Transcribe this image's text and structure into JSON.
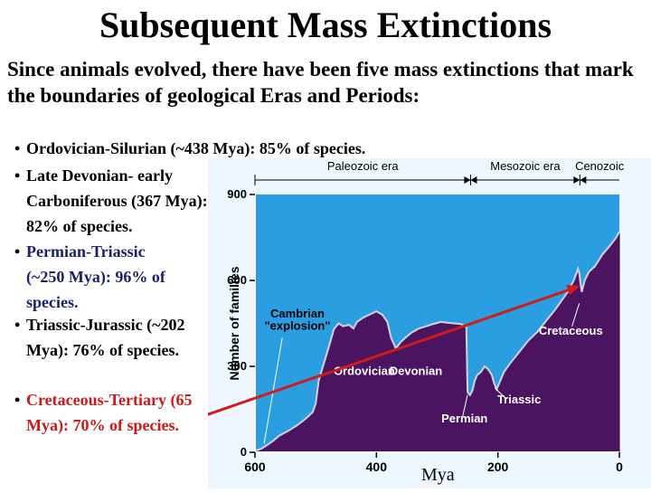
{
  "title": "Subsequent Mass Extinctions",
  "intro": "Since animals evolved, there have been five mass extinctions that mark the boundaries of geological Eras and Periods:",
  "bullets": [
    {
      "text": "Ordovician-Silurian (~438 Mya): 85% of species."
    },
    {
      "text": "Late Devonian- early Carboniferous (367 Mya): 82% of species."
    },
    {
      "text": "Permian-Triassic (~250 Mya): 96% of species."
    },
    {
      "text": "Triassic-Jurassic (~202 Mya): 76% of species."
    },
    {
      "text": "Cretaceous-Tertiary (65 Mya): 70% of species."
    }
  ],
  "x_caption": "Mya",
  "colors": {
    "area": "#4a1460",
    "plot_bg": "#2a9ee0",
    "axis": "#ffffff",
    "arrow": "#d11a1a",
    "blue_text": "#1a1f6e",
    "red_text": "#cc1a1a"
  },
  "chart_data": {
    "type": "area",
    "title": "",
    "xlabel": "Mya",
    "ylabel": "Number of families",
    "xlim": [
      600,
      0
    ],
    "ylim": [
      0,
      900
    ],
    "xticks": [
      600,
      400,
      200,
      0
    ],
    "yticks": [
      0,
      300,
      600,
      900
    ],
    "grid": false,
    "eras": [
      {
        "name": "Paleozoic era",
        "from": 600,
        "to": 245
      },
      {
        "name": "Mesozoic era",
        "from": 245,
        "to": 65
      },
      {
        "name": "Cenozoic",
        "from": 65,
        "to": 0
      }
    ],
    "series": [
      {
        "x": [
          600,
          590,
          580,
          570,
          560,
          545,
          530,
          515,
          505,
          500,
          495,
          488,
          478,
          470,
          462,
          455,
          445,
          438,
          432,
          422,
          412,
          400,
          390,
          382,
          376,
          368,
          360,
          352,
          342,
          330,
          318,
          306,
          294,
          282,
          272,
          262,
          252,
          250,
          246,
          242,
          238,
          234,
          228,
          222,
          216,
          210,
          206,
          202,
          198,
          190,
          180,
          165,
          150,
          135,
          120,
          105,
          95,
          85,
          75,
          68,
          66,
          64,
          62,
          57,
          50,
          40,
          28,
          16,
          5,
          0
        ],
        "values": [
          5,
          12,
          25,
          40,
          58,
          75,
          95,
          120,
          140,
          170,
          250,
          300,
          370,
          430,
          450,
          440,
          445,
          432,
          455,
          470,
          480,
          492,
          480,
          455,
          400,
          362,
          385,
          400,
          418,
          432,
          440,
          448,
          455,
          452,
          450,
          448,
          440,
          210,
          200,
          215,
          250,
          270,
          280,
          300,
          290,
          270,
          240,
          220,
          240,
          280,
          310,
          350,
          390,
          420,
          460,
          500,
          530,
          560,
          600,
          640,
          625,
          590,
          560,
          600,
          630,
          650,
          690,
          720,
          750,
          770
        ]
      }
    ],
    "annotations": [
      {
        "text": "Cambrian",
        "x": 530,
        "y": 470
      },
      {
        "text": "\"explosion\"",
        "x": 530,
        "y": 428
      },
      {
        "text": "Ordovician",
        "x": 420,
        "y": 270
      },
      {
        "text": "Devonian",
        "x": 335,
        "y": 270
      },
      {
        "text": "Permian",
        "x": 255,
        "y": 105
      },
      {
        "text": "Triassic",
        "x": 165,
        "y": 170
      },
      {
        "text": "Cretaceous",
        "x": 80,
        "y": 410
      }
    ],
    "pointer": {
      "from_bullet": "Cretaceous-Tertiary (65 Mya): 70% of species.",
      "to": {
        "x": 65,
        "y": 600
      }
    }
  }
}
